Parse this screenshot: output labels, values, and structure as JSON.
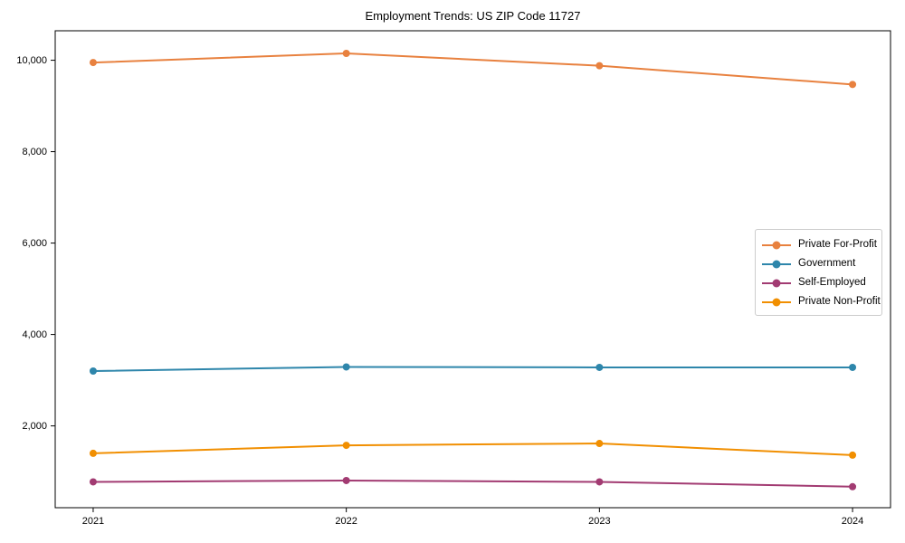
{
  "chart_data": {
    "type": "line",
    "title": "Employment Trends: US ZIP Code 11727",
    "xlabel": "",
    "ylabel": "",
    "x": [
      2021,
      2022,
      2023,
      2024
    ],
    "x_tick_labels": [
      "2021",
      "2022",
      "2023",
      "2024"
    ],
    "y_ticks": [
      2000,
      4000,
      6000,
      8000,
      10000
    ],
    "y_tick_labels": [
      "2,000",
      "4,000",
      "6,000",
      "8,000",
      "10,000"
    ],
    "xlim": [
      2020.85,
      2024.15
    ],
    "ylim": [
      210,
      10645
    ],
    "grid": false,
    "legend_position": "center-right",
    "background_color": "#ffffff",
    "axis_color": "#000000",
    "series": [
      {
        "name": "Private For-Profit",
        "color": "#E8813F",
        "values": [
          9950,
          10150,
          9880,
          9470
        ]
      },
      {
        "name": "Government",
        "color": "#2E86AB",
        "values": [
          3200,
          3290,
          3280,
          3280
        ]
      },
      {
        "name": "Self-Employed",
        "color": "#A23B72",
        "values": [
          775,
          805,
          775,
          670
        ]
      },
      {
        "name": "Private Non-Profit",
        "color": "#F18F01",
        "values": [
          1400,
          1575,
          1615,
          1360
        ]
      }
    ]
  }
}
